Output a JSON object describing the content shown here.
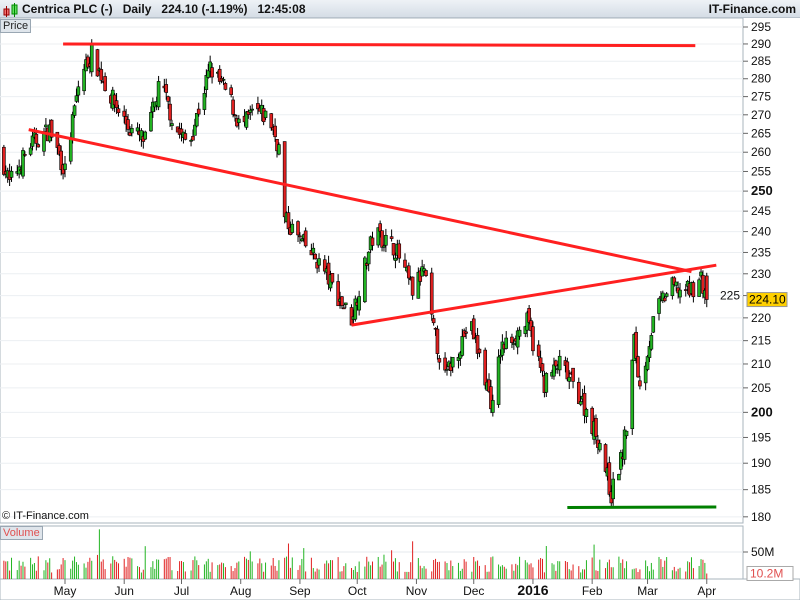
{
  "header": {
    "instrument": "Centrica PLC (-)",
    "period": "Daily",
    "last": "224.10",
    "change": "(-1.19%)",
    "time": "12:45:08",
    "brand": "IT-Finance.com"
  },
  "panels": {
    "price_label": "Price",
    "volume_label": "Volume",
    "copyright": "© IT-Finance.com"
  },
  "colors": {
    "up": "#22b422",
    "down": "#e02020",
    "trend_red": "#ff2020",
    "trend_green": "#008000",
    "last_badge": "#ffd000"
  },
  "chart_data": {
    "type": "candlestick",
    "y_scale": "log",
    "ylim": [
      180,
      295
    ],
    "y_ticks": [
      295,
      290,
      285,
      280,
      275,
      270,
      265,
      260,
      255,
      250,
      245,
      240,
      235,
      230,
      225,
      220,
      215,
      210,
      205,
      200,
      195,
      190,
      185,
      180
    ],
    "y_ticks_bold": [
      250,
      200
    ],
    "last_price_label": "224.10",
    "x_ticks": [
      {
        "label": "May",
        "date": "2015-05-01"
      },
      {
        "label": "Jun",
        "date": "2015-06-01"
      },
      {
        "label": "Jul",
        "date": "2015-07-01"
      },
      {
        "label": "Aug",
        "date": "2015-08-01"
      },
      {
        "label": "Sep",
        "date": "2015-09-01"
      },
      {
        "label": "Oct",
        "date": "2015-10-01"
      },
      {
        "label": "Nov",
        "date": "2015-11-01"
      },
      {
        "label": "Dec",
        "date": "2015-12-01"
      },
      {
        "label": "2016",
        "date": "2016-01-01",
        "bold": true
      },
      {
        "label": "Feb",
        "date": "2016-02-01"
      },
      {
        "label": "Mar",
        "date": "2016-03-01"
      },
      {
        "label": "Apr",
        "date": "2016-04-01"
      }
    ],
    "close_path": [
      [
        "2015-03-28",
        260
      ],
      [
        "2015-04-02",
        252
      ],
      [
        "2015-04-13",
        262
      ],
      [
        "2015-04-23",
        266
      ],
      [
        "2015-05-01",
        255
      ],
      [
        "2015-05-09",
        281
      ],
      [
        "2015-05-15",
        287
      ],
      [
        "2015-05-25",
        275
      ],
      [
        "2015-06-04",
        266
      ],
      [
        "2015-06-12",
        263
      ],
      [
        "2015-06-20",
        279
      ],
      [
        "2015-06-28",
        266
      ],
      [
        "2015-07-05",
        262
      ],
      [
        "2015-07-16",
        283
      ],
      [
        "2015-07-26",
        275
      ],
      [
        "2015-08-01",
        266
      ],
      [
        "2015-08-08",
        271
      ],
      [
        "2015-08-16",
        269
      ],
      [
        "2015-08-23",
        258
      ],
      [
        "2015-08-24",
        243
      ],
      [
        "2015-09-01",
        238
      ],
      [
        "2015-09-12",
        232
      ],
      [
        "2015-09-22",
        224
      ],
      [
        "2015-09-28",
        220
      ],
      [
        "2015-10-10",
        240
      ],
      [
        "2015-10-21",
        236
      ],
      [
        "2015-10-30",
        226
      ],
      [
        "2015-11-05",
        231
      ],
      [
        "2015-11-09",
        219
      ],
      [
        "2015-11-16",
        207
      ],
      [
        "2015-11-29",
        219
      ],
      [
        "2015-12-11",
        201
      ],
      [
        "2015-12-15",
        213
      ],
      [
        "2015-12-29",
        219
      ],
      [
        "2016-01-07",
        206
      ],
      [
        "2016-01-15",
        210
      ],
      [
        "2016-01-26",
        203
      ],
      [
        "2016-02-05",
        194
      ],
      [
        "2016-02-11",
        184
      ],
      [
        "2016-02-17",
        192
      ],
      [
        "2016-02-20",
        200
      ],
      [
        "2016-02-23",
        215
      ],
      [
        "2016-02-26",
        205
      ],
      [
        "2016-03-05",
        221
      ],
      [
        "2016-03-13",
        227
      ],
      [
        "2016-03-23",
        226
      ],
      [
        "2016-03-29",
        229
      ],
      [
        "2016-04-01",
        224.1
      ]
    ],
    "trendlines": [
      {
        "color": "red",
        "from": [
          "2015-05-00",
          290
        ],
        "to": [
          "2016-03-26",
          289.5
        ]
      },
      {
        "color": "red",
        "from": [
          "2015-04-12",
          266
        ],
        "to": [
          "2016-03-24",
          230.5
        ]
      },
      {
        "color": "red",
        "from": [
          "2015-09-28",
          218.4
        ],
        "to": [
          "2016-04-06",
          232
        ]
      },
      {
        "color": "green",
        "from": [
          "2016-01-19",
          181.7
        ],
        "to": [
          "2016-04-06",
          181.8
        ]
      }
    ],
    "volume": {
      "ticks": [
        "50M"
      ],
      "last_label": "10.2M",
      "last": 10.2
    }
  }
}
